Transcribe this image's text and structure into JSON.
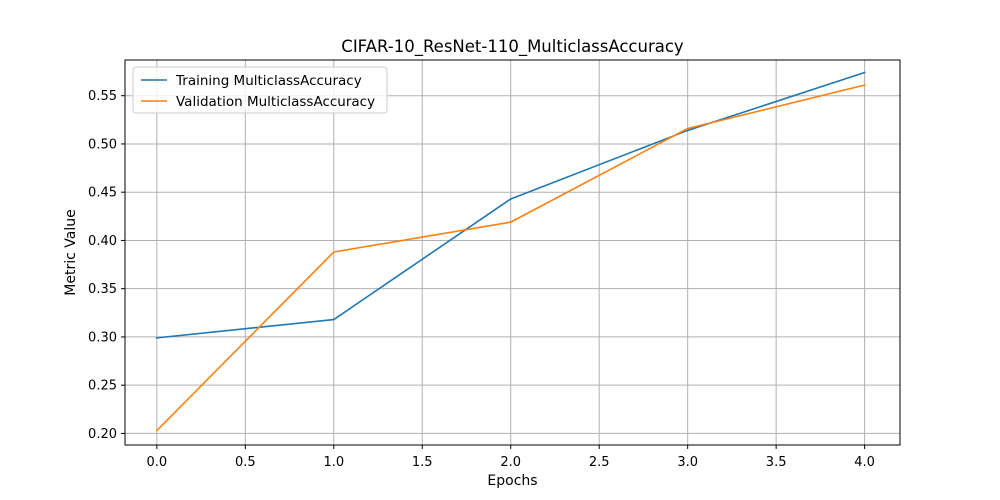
{
  "chart_data": {
    "type": "line",
    "title": "CIFAR-10_ResNet-110_MulticlassAccuracy",
    "xlabel": "Epochs",
    "ylabel": "Metric Value",
    "xlim": [
      -0.18,
      4.2
    ],
    "ylim": [
      0.188,
      0.587
    ],
    "xticks": [
      0.0,
      0.5,
      1.0,
      1.5,
      2.0,
      2.5,
      3.0,
      3.5,
      4.0
    ],
    "xtick_labels": [
      "0.0",
      "0.5",
      "1.0",
      "1.5",
      "2.0",
      "2.5",
      "3.0",
      "3.5",
      "4.0"
    ],
    "yticks": [
      0.2,
      0.25,
      0.3,
      0.35,
      0.4,
      0.45,
      0.5,
      0.55
    ],
    "ytick_labels": [
      "0.20",
      "0.25",
      "0.30",
      "0.35",
      "0.40",
      "0.45",
      "0.50",
      "0.55"
    ],
    "grid": true,
    "legend_position": "top-left",
    "x": [
      0,
      1,
      2,
      3,
      4
    ],
    "series": [
      {
        "name": "Training MulticlassAccuracy",
        "color": "#1f77b4",
        "values": [
          0.299,
          0.318,
          0.443,
          0.514,
          0.574
        ]
      },
      {
        "name": "Validation MulticlassAccuracy",
        "color": "#ff7f0e",
        "values": [
          0.203,
          0.388,
          0.419,
          0.516,
          0.561
        ]
      }
    ]
  }
}
